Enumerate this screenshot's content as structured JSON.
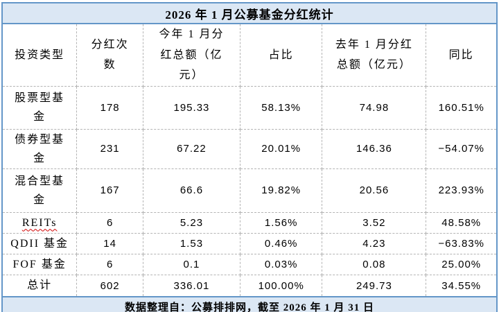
{
  "title": "2026 年 1 月公募基金分红统计",
  "table": {
    "columns": [
      "投资类型",
      "分红次数",
      "今年 1 月分红总额（亿元）",
      "占比",
      "去年 1 月分红总额（亿元）",
      "同比"
    ],
    "rows": [
      {
        "type": "股票型基金",
        "times": "178",
        "this_year": "195.33",
        "share": "58.13%",
        "last_year": "74.98",
        "yoy": "160.51%"
      },
      {
        "type": "债券型基金",
        "times": "231",
        "this_year": "67.22",
        "share": "20.01%",
        "last_year": "146.36",
        "yoy": "−54.07%"
      },
      {
        "type": "混合型基金",
        "times": "167",
        "this_year": "66.6",
        "share": "19.82%",
        "last_year": "20.56",
        "yoy": "223.93%"
      },
      {
        "type": "REITs",
        "times": "6",
        "this_year": "5.23",
        "share": "1.56%",
        "last_year": "3.52",
        "yoy": "48.58%"
      },
      {
        "type": "QDII 基金",
        "times": "14",
        "this_year": "1.53",
        "share": "0.46%",
        "last_year": "4.23",
        "yoy": "−63.83%"
      },
      {
        "type": "FOF 基金",
        "times": "6",
        "this_year": "0.1",
        "share": "0.03%",
        "last_year": "0.08",
        "yoy": "25.00%"
      },
      {
        "type": "总计",
        "times": "602",
        "this_year": "336.01",
        "share": "100.00%",
        "last_year": "249.73",
        "yoy": "34.55%"
      }
    ]
  },
  "footer_note": "数据整理自：公募排排网，截至 2026 年 1 月 31 日",
  "colors": {
    "panel_fill": "#dbe7f4",
    "outer_border": "#6396c8",
    "grid_line": "#b3b3b3",
    "text": "#000000",
    "spellcheck_underline": "#d00000"
  }
}
